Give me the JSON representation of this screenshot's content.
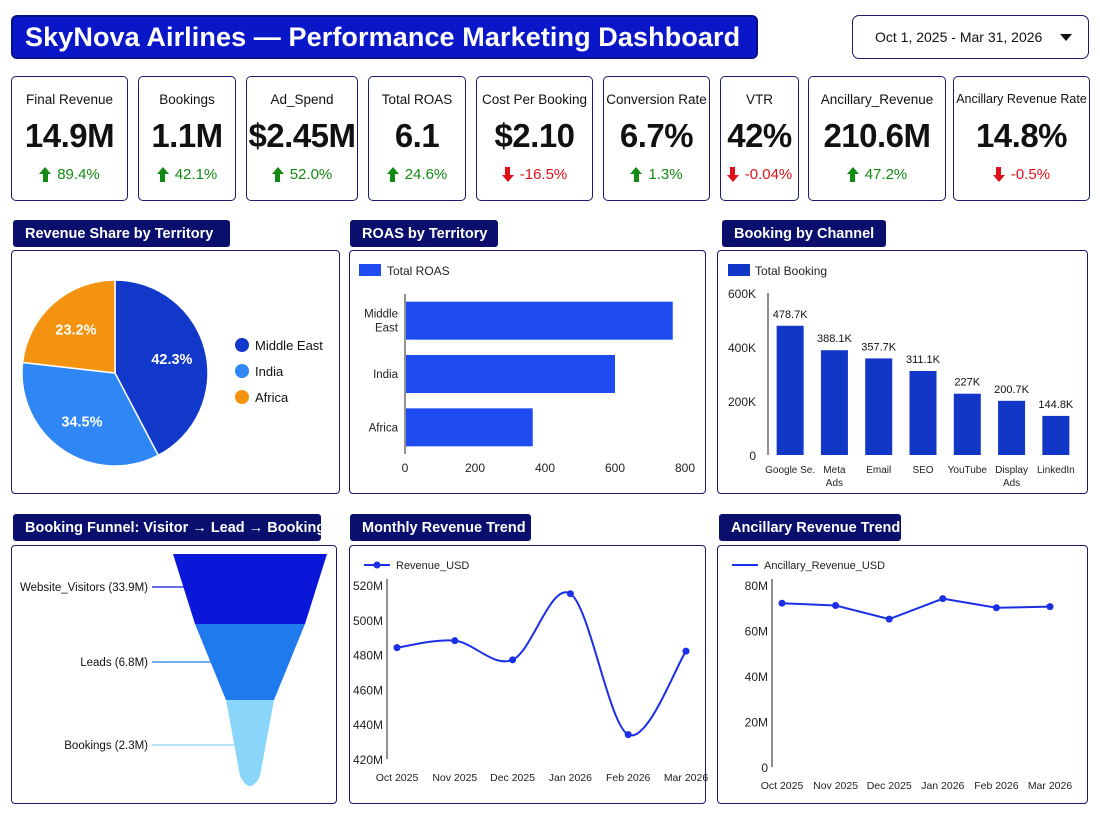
{
  "header": {
    "title": "SkyNova Airlines — Performance Marketing Dashboard",
    "date_range": "Oct 1, 2025 - Mar 31, 2026"
  },
  "kpis": [
    {
      "label": "Final Revenue",
      "value": "14.9M",
      "change": "89.4%",
      "direction": "up"
    },
    {
      "label": "Bookings",
      "value": "1.1M",
      "change": "42.1%",
      "direction": "up"
    },
    {
      "label": "Ad_Spend",
      "value": "$2.45M",
      "change": "52.0%",
      "direction": "up"
    },
    {
      "label": "Total ROAS",
      "value": "6.1",
      "change": "24.6%",
      "direction": "up"
    },
    {
      "label": "Cost Per Booking",
      "value": "$2.10",
      "change": "-16.5%",
      "direction": "down"
    },
    {
      "label": "Conversion Rate",
      "value": "6.7%",
      "change": "1.3%",
      "direction": "up"
    },
    {
      "label": "VTR",
      "value": "42%",
      "change": "-0.04%",
      "direction": "down"
    },
    {
      "label": "Ancillary_Revenue",
      "value": "210.6M",
      "change": "47.2%",
      "direction": "up"
    },
    {
      "label": "Ancillary Revenue Rate",
      "value": "14.8%",
      "change": "-0.5%",
      "direction": "down"
    }
  ],
  "sections": {
    "revenue_share": "Revenue Share by Territory",
    "roas": "ROAS by Territory",
    "booking_channel": "Booking by Channel",
    "funnel": "Booking Funnel: Visitor → Lead → Booking",
    "monthly_revenue": "Monthly Revenue Trend",
    "ancillary_trend": "Ancillary Revenue Trend"
  },
  "colors": {
    "primary": "#0a17c8",
    "dark_navy": "#0a0f6e",
    "up": "#138a13",
    "down": "#e0101a"
  },
  "chart_data": [
    {
      "type": "pie",
      "title": "Revenue Share by Territory",
      "legend_position": "right",
      "slices": [
        {
          "label": "Middle East",
          "value": 42.3,
          "display": "42.3%",
          "color": "#1238c9"
        },
        {
          "label": "India",
          "value": 34.5,
          "display": "34.5%",
          "color": "#2f86f5"
        },
        {
          "label": "Africa",
          "value": 23.2,
          "display": "23.2%",
          "color": "#f4930f"
        }
      ]
    },
    {
      "type": "bar",
      "orientation": "horizontal",
      "title": "ROAS by Territory",
      "legend_position": "top-left",
      "categories": [
        "Middle East",
        "India",
        "Africa"
      ],
      "series": [
        {
          "name": "Total ROAS",
          "values": [
            765,
            600,
            365
          ],
          "color": "#1f4cf0"
        }
      ],
      "xlim": [
        0,
        800
      ],
      "xticks": [
        0,
        200,
        400,
        600,
        800
      ],
      "grid": false
    },
    {
      "type": "bar",
      "title": "Booking by Channel",
      "legend_position": "top-left",
      "categories": [
        "Google Se.",
        "Meta Ads",
        "Email",
        "SEO",
        "YouTube",
        "Display Ads",
        "LinkedIn"
      ],
      "series": [
        {
          "name": "Total Booking",
          "values": [
            478700,
            388100,
            357700,
            311100,
            227000,
            200700,
            144800
          ],
          "labels": [
            "478.7K",
            "388.1K",
            "357.7K",
            "311.1K",
            "227K",
            "200.7K",
            "144.8K"
          ],
          "color": "#1236c6"
        }
      ],
      "ylim": [
        0,
        600000
      ],
      "yticks": [
        "0",
        "200K",
        "400K",
        "600K"
      ],
      "grid": false
    },
    {
      "type": "funnel",
      "title": "Booking Funnel: Visitor → Lead → Booking",
      "stages": [
        {
          "label": "Website_Visitors (33.9M)",
          "value": 33.9,
          "color": "#0a17d8"
        },
        {
          "label": "Leads (6.8M)",
          "value": 6.8,
          "color": "#1f7aee"
        },
        {
          "label": "Bookings (2.3M)",
          "value": 2.3,
          "color": "#8ad6fb"
        }
      ]
    },
    {
      "type": "line",
      "title": "Monthly Revenue Trend",
      "legend_position": "top-left",
      "x": [
        "Oct 2025",
        "Nov 2025",
        "Dec 2025",
        "Jan 2026",
        "Feb 2026",
        "Mar 2026"
      ],
      "series": [
        {
          "name": "Revenue_USD",
          "values": [
            484,
            488,
            477,
            515,
            434,
            482
          ],
          "color": "#1a2fe6"
        }
      ],
      "ylim": [
        420,
        520
      ],
      "yticks": [
        "420M",
        "440M",
        "460M",
        "480M",
        "500M",
        "520M"
      ],
      "smooth": true,
      "grid": false
    },
    {
      "type": "line",
      "title": "Ancillary Revenue Trend",
      "legend_position": "top-left",
      "x": [
        "Oct 2025",
        "Nov 2025",
        "Dec 2025",
        "Jan 2026",
        "Feb 2026",
        "Mar 2026"
      ],
      "series": [
        {
          "name": "Ancillary_Revenue_USD",
          "values": [
            72,
            71,
            65,
            74,
            70,
            70.5
          ],
          "color": "#1a2fe6"
        }
      ],
      "ylim": [
        0,
        80
      ],
      "yticks": [
        "0",
        "20M",
        "40M",
        "60M",
        "80M"
      ],
      "grid": false
    }
  ]
}
